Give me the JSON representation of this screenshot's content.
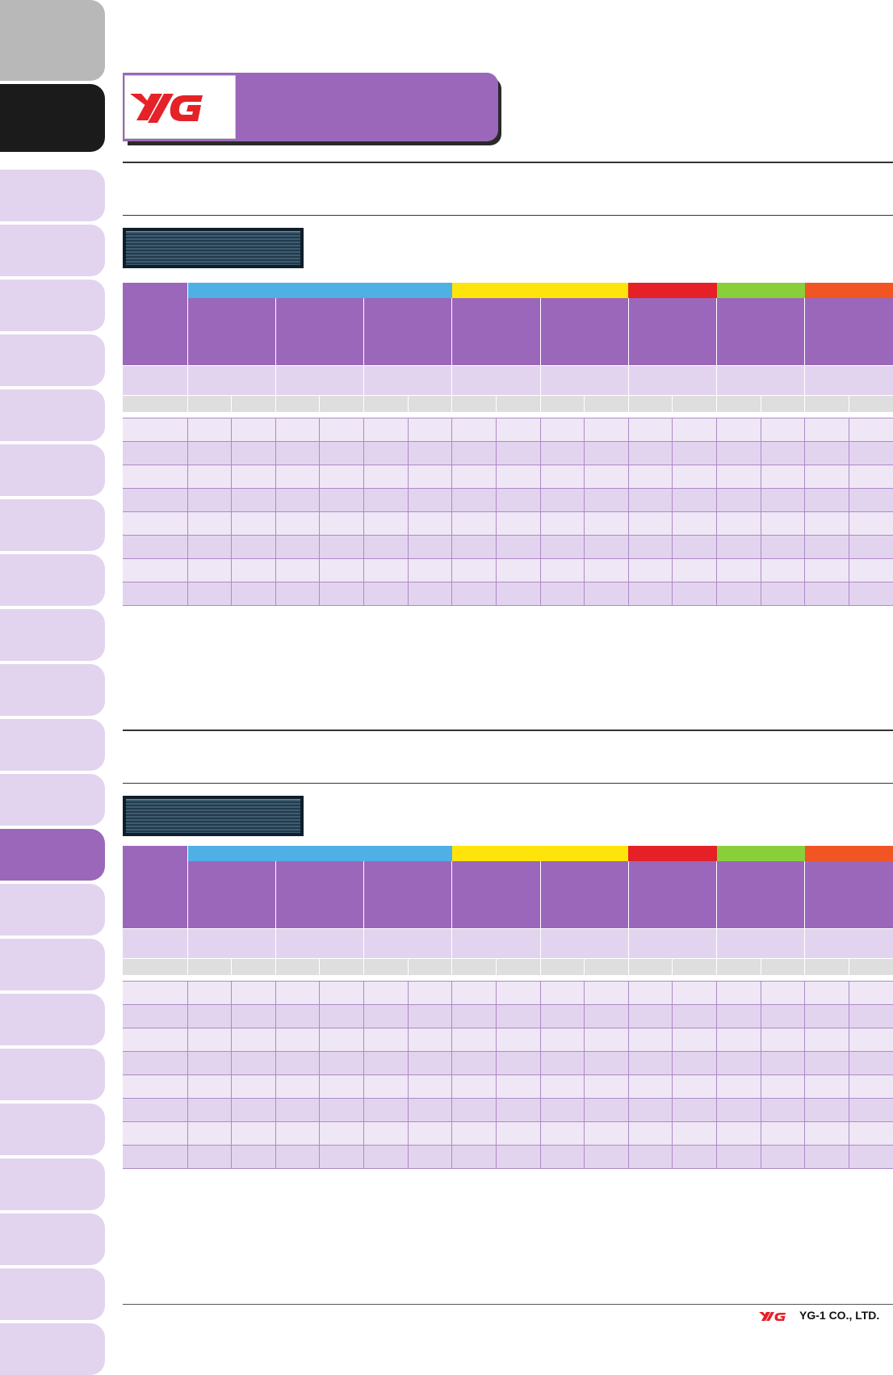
{
  "brand": {
    "logo_text": "YG",
    "accent": "#9b67ba",
    "logo_red": "#e42228"
  },
  "side_tabs": {
    "count": 24,
    "active_index": 14
  },
  "tables": {
    "group_colors": [
      "#4fb0e6",
      "#ffe40c",
      "#e52127",
      "#89cf3a",
      "#f05523"
    ],
    "header_columns": 8,
    "sub_columns": 16,
    "data_rows": 8
  },
  "footer": {
    "company": "YG-1 CO., LTD."
  }
}
